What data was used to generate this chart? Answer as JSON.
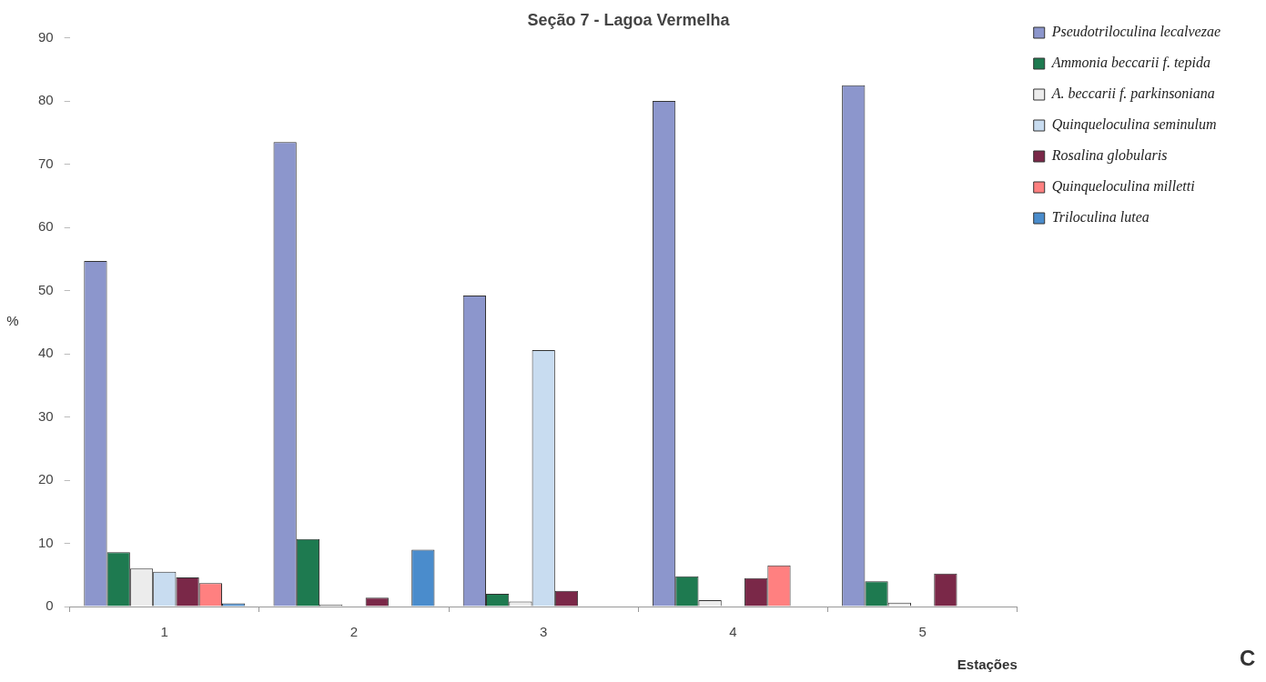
{
  "chart_data": {
    "type": "bar",
    "title": "Seção 7 - Lagoa Vermelha",
    "xlabel": "Estações",
    "ylabel": "%",
    "categories": [
      "1",
      "2",
      "3",
      "4",
      "5"
    ],
    "series": [
      {
        "name": "Pseudotriloculina lecalvezae",
        "color": "#8c96cc",
        "values": [
          54.7,
          73.5,
          49.2,
          80,
          82.5
        ]
      },
      {
        "name": "Ammonia beccarii f. tepida",
        "color": "#1e7a50",
        "values": [
          8.6,
          10.7,
          2,
          4.8,
          4
        ]
      },
      {
        "name": "A. beccarii f. parkinsoniana",
        "color": "#ececec",
        "values": [
          6,
          0.3,
          0.8,
          1,
          0.6
        ]
      },
      {
        "name": "Quinqueloculina seminulum",
        "color": "#c8dcf0",
        "values": [
          5.5,
          0,
          40.6,
          0,
          0
        ]
      },
      {
        "name": "Rosalina globularis",
        "color": "#7a2848",
        "values": [
          4.6,
          1.4,
          2.5,
          4.5,
          5.2
        ]
      },
      {
        "name": "Quinqueloculina milletti",
        "color": "#ff8080",
        "values": [
          3.7,
          0,
          0,
          6.5,
          0
        ]
      },
      {
        "name": "Triloculina lutea",
        "color": "#4a8ccc",
        "values": [
          0.5,
          9,
          0,
          0,
          0
        ]
      }
    ],
    "ylim": [
      0,
      90
    ],
    "yticks": [
      0,
      10,
      20,
      30,
      40,
      50,
      60,
      70,
      80,
      90
    ],
    "grid": false,
    "legend": "top right",
    "annotations": [
      "C"
    ]
  }
}
